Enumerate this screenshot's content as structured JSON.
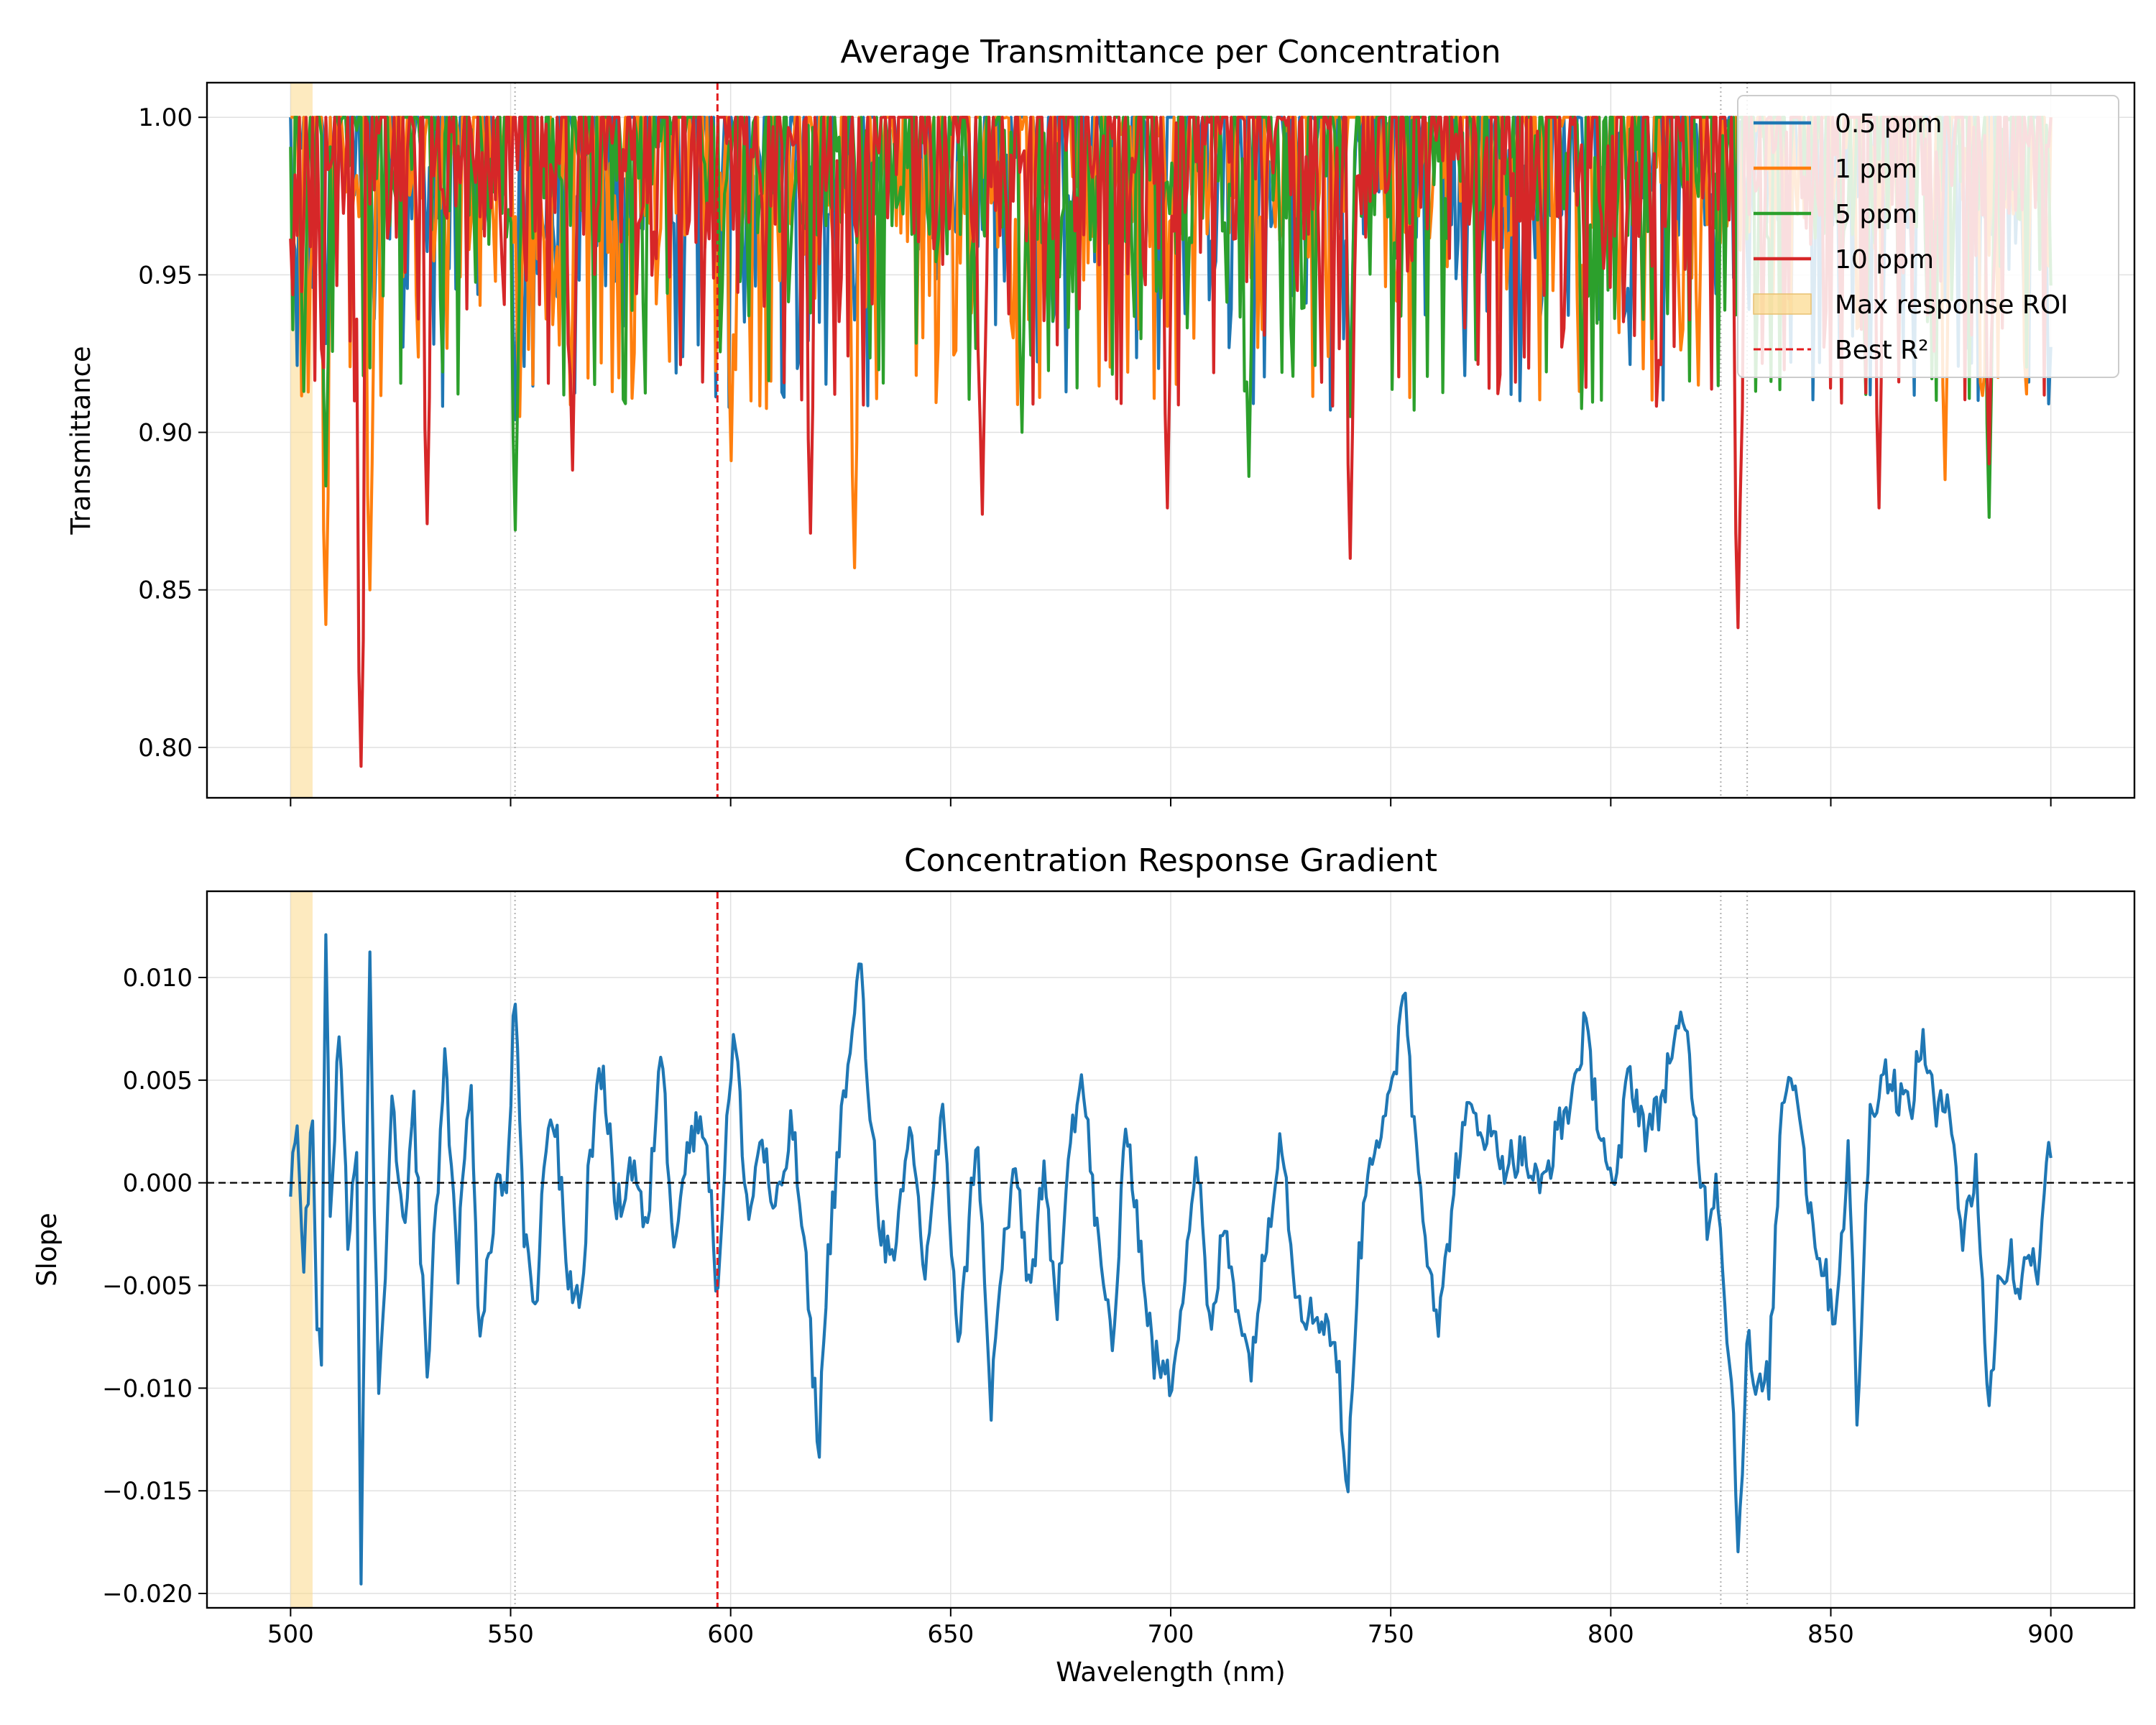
{
  "colors": {
    "c05": "#1f77b4",
    "c1": "#ff7f0e",
    "c5": "#2ca02c",
    "c10": "#d62728",
    "gradient": "#1f77b4",
    "roi": "#fcd98a",
    "best": "#e31a1c",
    "guide": "#b0b0b0",
    "grid": "#e0e0e0",
    "zero": "#000000"
  },
  "chart_data": [
    {
      "type": "line",
      "title": "Average Transmittance per Concentration",
      "xlabel": "",
      "ylabel": "Transmittance",
      "xlim": [
        481,
        919
      ],
      "ylim": [
        0.784,
        1.011
      ],
      "grid": true,
      "legend_position": "top-right",
      "xticks": [
        500,
        550,
        600,
        650,
        700,
        750,
        800,
        850,
        900
      ],
      "yticks": [
        0.8,
        0.85,
        0.9,
        0.95,
        1.0
      ],
      "ytick_labels": [
        "0.80",
        "0.85",
        "0.90",
        "0.95",
        "1.00"
      ],
      "roi": {
        "label": "Max response ROI",
        "x_range": [
          500,
          505
        ]
      },
      "best_r2": {
        "label": "Best R²",
        "x": 597
      },
      "guide_lines_x": [
        551,
        825,
        831
      ],
      "x_range": [
        500,
        900
      ],
      "series": [
        {
          "name": "0.5 ppm",
          "color_key": "c05",
          "min_points": [
            [
              505,
              0.946
            ],
            [
              519,
              0.936
            ],
            [
              551,
              0.904
            ],
            [
              589,
              0.924
            ],
            [
              603,
              0.935
            ],
            [
              662,
              0.948
            ],
            [
              741,
              0.908
            ],
            [
              767,
              0.918
            ],
            [
              824,
              0.944
            ],
            [
              862,
              0.94
            ],
            [
              894,
              0.935
            ]
          ]
        },
        {
          "name": "1 ppm",
          "color_key": "c1",
          "min_points": [
            [
              508,
              0.839
            ],
            [
              518,
              0.85
            ],
            [
              552,
              0.905
            ],
            [
              600,
              0.891
            ],
            [
              628,
              0.857
            ],
            [
              664,
              0.93
            ],
            [
              793,
              0.913
            ],
            [
              820,
              0.915
            ],
            [
              876,
              0.885
            ]
          ]
        },
        {
          "name": "5 ppm",
          "color_key": "c5",
          "min_points": [
            [
              503,
              0.913
            ],
            [
              508,
              0.883
            ],
            [
              551,
              0.869
            ],
            [
              666,
              0.9
            ],
            [
              718,
              0.886
            ],
            [
              741,
              0.905
            ],
            [
              858,
              0.912
            ],
            [
              886,
              0.873
            ]
          ]
        },
        {
          "name": "10 ppm",
          "color_key": "c10",
          "min_points": [
            [
              516,
              0.794
            ],
            [
              531,
              0.871
            ],
            [
              564,
              0.888
            ],
            [
              618,
              0.868
            ],
            [
              657,
              0.874
            ],
            [
              699,
              0.876
            ],
            [
              741,
              0.86
            ],
            [
              829,
              0.838
            ],
            [
              861,
              0.876
            ],
            [
              886,
              0.89
            ]
          ]
        }
      ]
    },
    {
      "type": "line",
      "title": "Concentration Response Gradient",
      "xlabel": "Wavelength (nm)",
      "ylabel": "Slope",
      "xlim": [
        481,
        919
      ],
      "ylim": [
        -0.0207,
        0.0142
      ],
      "grid": true,
      "xticks": [
        500,
        550,
        600,
        650,
        700,
        750,
        800,
        850,
        900
      ],
      "xtick_labels": [
        "500",
        "550",
        "600",
        "650",
        "700",
        "750",
        "800",
        "850",
        "900"
      ],
      "yticks": [
        -0.02,
        -0.015,
        -0.01,
        -0.005,
        0.0,
        0.005,
        0.01
      ],
      "ytick_labels": [
        "−0.020",
        "−0.015",
        "−0.010",
        "−0.005",
        "0.000",
        "0.005",
        "0.010"
      ],
      "zero_line": 0.0,
      "x_range": [
        500,
        900
      ],
      "series": [
        {
          "name": "",
          "color_key": "gradient",
          "anchors": [
            [
              500,
              -0.0003
            ],
            [
              501,
              0.0028
            ],
            [
              502,
              0.0012
            ],
            [
              503,
              -0.0042
            ],
            [
              505,
              0.0035
            ],
            [
              506,
              -0.0068
            ],
            [
              507,
              -0.0085
            ],
            [
              508,
              0.0125
            ],
            [
              509,
              -0.002
            ],
            [
              511,
              0.007
            ],
            [
              513,
              -0.0025
            ],
            [
              515,
              0.002
            ],
            [
              516,
              -0.0191
            ],
            [
              518,
              0.0107
            ],
            [
              520,
              -0.0112
            ],
            [
              523,
              0.0035
            ],
            [
              526,
              -0.003
            ],
            [
              528,
              0.004
            ],
            [
              531,
              -0.0095
            ],
            [
              535,
              0.0062
            ],
            [
              538,
              -0.004
            ],
            [
              541,
              0.0055
            ],
            [
              543,
              -0.0082
            ],
            [
              547,
              0.0005
            ],
            [
              549,
              -0.001
            ],
            [
              551,
              0.0094
            ],
            [
              553,
              -0.003
            ],
            [
              556,
              -0.006
            ],
            [
              558,
              0.0025
            ],
            [
              560,
              0.0033
            ],
            [
              563,
              -0.0045
            ],
            [
              566,
              -0.006
            ],
            [
              568,
              0.0015
            ],
            [
              571,
              0.0058
            ],
            [
              574,
              -0.0015
            ],
            [
              578,
              0.0012
            ],
            [
              581,
              -0.003
            ],
            [
              584,
              0.007
            ],
            [
              587,
              -0.0025
            ],
            [
              590,
              0.0015
            ],
            [
              594,
              0.0035
            ],
            [
              597,
              -0.0055
            ],
            [
              599,
              0.0025
            ],
            [
              601,
              0.0072
            ],
            [
              604,
              -0.002
            ],
            [
              607,
              0.0025
            ],
            [
              610,
              -0.002
            ],
            [
              614,
              0.003
            ],
            [
              617,
              -0.004
            ],
            [
              620,
              -0.013
            ],
            [
              622,
              -0.004
            ],
            [
              625,
              0.003
            ],
            [
              628,
              0.0072
            ],
            [
              629,
              0.0117
            ],
            [
              631,
              0.0055
            ],
            [
              634,
              -0.002
            ],
            [
              637,
              -0.0045
            ],
            [
              641,
              0.003
            ],
            [
              644,
              -0.0045
            ],
            [
              648,
              0.0035
            ],
            [
              652,
              -0.008
            ],
            [
              656,
              0.003
            ],
            [
              659,
              -0.0112
            ],
            [
              662,
              -0.003
            ],
            [
              665,
              0.0005
            ],
            [
              668,
              -0.0055
            ],
            [
              671,
              0.0005
            ],
            [
              674,
              -0.0065
            ],
            [
              677,
              0.0025
            ],
            [
              680,
              0.005
            ],
            [
              684,
              -0.0042
            ],
            [
              687,
              -0.0078
            ],
            [
              690,
              0.0033
            ],
            [
              693,
              -0.003
            ],
            [
              696,
              -0.0085
            ],
            [
              700,
              -0.0098
            ],
            [
              703,
              -0.0045
            ],
            [
              706,
              0.0016
            ],
            [
              709,
              -0.008
            ],
            [
              712,
              -0.002
            ],
            [
              715,
              -0.0055
            ],
            [
              718,
              -0.009
            ],
            [
              722,
              -0.0025
            ],
            [
              725,
              0.003
            ],
            [
              728,
              -0.0045
            ],
            [
              731,
              -0.0065
            ],
            [
              735,
              -0.0065
            ],
            [
              738,
              -0.0085
            ],
            [
              740,
              -0.016
            ],
            [
              742,
              -0.006
            ],
            [
              745,
              0.0015
            ],
            [
              749,
              0.003
            ],
            [
              751,
              0.005
            ],
            [
              753,
              0.0105
            ],
            [
              755,
              0.0035
            ],
            [
              758,
              -0.0025
            ],
            [
              761,
              -0.007
            ],
            [
              765,
              0.001
            ],
            [
              768,
              0.0035
            ],
            [
              772,
              0.0025
            ],
            [
              776,
              0.001
            ],
            [
              780,
              0.0015
            ],
            [
              784,
              -0.0005
            ],
            [
              788,
              0.0025
            ],
            [
              791,
              0.004
            ],
            [
              794,
              0.0075
            ],
            [
              797,
              0.0035
            ],
            [
              801,
              -0.001
            ],
            [
              804,
              0.0055
            ],
            [
              808,
              0.0025
            ],
            [
              811,
              0.0035
            ],
            [
              814,
              0.0068
            ],
            [
              817,
              0.0075
            ],
            [
              820,
              0.0015
            ],
            [
              822,
              -0.002
            ],
            [
              824,
              0.0005
            ],
            [
              826,
              -0.0055
            ],
            [
              828,
              -0.012
            ],
            [
              829,
              -0.018
            ],
            [
              831,
              -0.0075
            ],
            [
              833,
              -0.0105
            ],
            [
              836,
              -0.0095
            ],
            [
              839,
              0.0045
            ],
            [
              842,
              0.0055
            ],
            [
              845,
              -0.001
            ],
            [
              848,
              -0.004
            ],
            [
              851,
              -0.0065
            ],
            [
              854,
              0.0015
            ],
            [
              856,
              -0.0115
            ],
            [
              859,
              0.0035
            ],
            [
              862,
              0.0055
            ],
            [
              865,
              0.0045
            ],
            [
              868,
              0.0035
            ],
            [
              871,
              0.0072
            ],
            [
              874,
              0.003
            ],
            [
              877,
              0.0045
            ],
            [
              880,
              -0.003
            ],
            [
              883,
              0.001
            ],
            [
              886,
              -0.0115
            ],
            [
              888,
              -0.005
            ],
            [
              891,
              -0.0035
            ],
            [
              893,
              -0.006
            ],
            [
              895,
              -0.0025
            ],
            [
              897,
              -0.0045
            ],
            [
              899,
              0.0015
            ]
          ]
        }
      ]
    }
  ],
  "legend": {
    "items": [
      {
        "label": "0.5 ppm",
        "color_key": "c05",
        "kind": "line"
      },
      {
        "label": "1 ppm",
        "color_key": "c1",
        "kind": "line"
      },
      {
        "label": "5 ppm",
        "color_key": "c5",
        "kind": "line"
      },
      {
        "label": "10 ppm",
        "color_key": "c10",
        "kind": "line"
      },
      {
        "label": "Max response ROI",
        "color_key": "roi",
        "kind": "patch"
      },
      {
        "label": "Best R²",
        "color_key": "best",
        "kind": "dash"
      }
    ]
  }
}
